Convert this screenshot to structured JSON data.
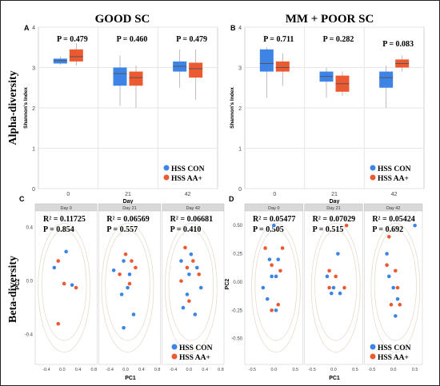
{
  "colors": {
    "con": "#3d84e6",
    "aa": "#ec5a32",
    "grid": "#e6e6e6",
    "ellipse": "#e6dccb"
  },
  "titles": {
    "left": "GOOD SC",
    "right": "MM + POOR SC"
  },
  "row_labels": {
    "alpha": "Alpha-diversity",
    "beta": "Beta-diversity"
  },
  "legend": {
    "con": "HSS CON",
    "aa": "HSS AA+"
  },
  "chart_data": [
    {
      "id": "A",
      "type": "box",
      "panel_label": "A",
      "ylabel": "Shannon's Index",
      "xlabel": "Day",
      "categories": [
        "0",
        "21",
        "42"
      ],
      "ylim": [
        0,
        4
      ],
      "yticks": [
        "0",
        "1",
        "2",
        "3",
        "4"
      ],
      "pvalues": [
        "P = 0.479",
        "P = 0.460",
        "P = 0.479"
      ],
      "series": [
        {
          "name": "HSS CON",
          "boxes": [
            {
              "q1": 3.1,
              "median": 3.17,
              "q3": 3.22,
              "wlo": 3.07,
              "whi": 3.27
            },
            {
              "q1": 2.55,
              "median": 2.85,
              "q3": 3.0,
              "wlo": 2.05,
              "whi": 3.3
            },
            {
              "q1": 2.9,
              "median": 3.03,
              "q3": 3.15,
              "wlo": 2.5,
              "whi": 3.45
            }
          ]
        },
        {
          "name": "HSS AA+",
          "boxes": [
            {
              "q1": 3.15,
              "median": 3.27,
              "q3": 3.45,
              "wlo": 3.05,
              "whi": 3.6
            },
            {
              "q1": 2.55,
              "median": 2.75,
              "q3": 2.9,
              "wlo": 2.0,
              "whi": 3.05
            },
            {
              "q1": 2.75,
              "median": 2.97,
              "q3": 3.12,
              "wlo": 2.2,
              "whi": 3.45
            }
          ]
        }
      ]
    },
    {
      "id": "B",
      "type": "box",
      "panel_label": "B",
      "ylabel": "Shannon's Index",
      "xlabel": "Day",
      "categories": [
        "0",
        "21",
        "42"
      ],
      "ylim": [
        0,
        4
      ],
      "yticks": [
        "0",
        "1",
        "2",
        "3",
        "4"
      ],
      "pvalues": [
        "P = 0.711",
        "P = 0.282",
        "P = 0.083"
      ],
      "series": [
        {
          "name": "HSS CON",
          "boxes": [
            {
              "q1": 2.9,
              "median": 3.1,
              "q3": 3.45,
              "wlo": 2.25,
              "whi": 3.5
            },
            {
              "q1": 2.65,
              "median": 2.78,
              "q3": 2.9,
              "wlo": 2.25,
              "whi": 3.0
            },
            {
              "q1": 2.5,
              "median": 2.75,
              "q3": 2.9,
              "wlo": 2.0,
              "whi": 3.05
            }
          ]
        },
        {
          "name": "HSS AA+",
          "boxes": [
            {
              "q1": 2.9,
              "median": 3.0,
              "q3": 3.15,
              "wlo": 2.55,
              "whi": 3.35
            },
            {
              "q1": 2.4,
              "median": 2.6,
              "q3": 2.8,
              "wlo": 2.3,
              "whi": 2.9
            },
            {
              "q1": 3.0,
              "median": 3.1,
              "q3": 3.2,
              "wlo": 2.9,
              "whi": 3.3
            }
          ]
        }
      ]
    },
    {
      "id": "C",
      "type": "scatter",
      "panel_label": "C",
      "xlabel": "PC1",
      "ylabel": "PC2",
      "xlim": [
        -0.6,
        0.8
      ],
      "ylim": [
        -0.6,
        0.5
      ],
      "xticks": [
        "-0.4",
        "0.0",
        "0.4",
        "0.8"
      ],
      "yticks": [
        "0.4",
        "0.0",
        "-0.4"
      ],
      "facets": [
        {
          "header": "Day 0",
          "r2": "R² = 0.11725",
          "p": "P = 0.854",
          "con": [
            [
              -0.2,
              0.1
            ],
            [
              0.1,
              0.22
            ],
            [
              0.25,
              -0.03
            ]
          ],
          "aa": [
            [
              -0.1,
              0.15
            ],
            [
              0.05,
              -0.02
            ],
            [
              0.35,
              -0.05
            ],
            [
              -0.1,
              -0.32
            ]
          ]
        },
        {
          "header": "Day 21",
          "r2": "R² = 0.06569",
          "p": "P = 0.557",
          "con": [
            [
              -0.3,
              0.08
            ],
            [
              -0.05,
              0.15
            ],
            [
              0.1,
              0.05
            ],
            [
              0.05,
              -0.05
            ],
            [
              -0.1,
              -0.1
            ],
            [
              0.2,
              -0.25
            ],
            [
              -0.05,
              -0.35
            ]
          ],
          "aa": [
            [
              -0.15,
              0.05
            ],
            [
              0.0,
              0.2
            ],
            [
              0.15,
              0.15
            ],
            [
              0.1,
              -0.02
            ],
            [
              0.25,
              0.1
            ]
          ]
        },
        {
          "header": "Day 42",
          "r2": "R² = 0.06681",
          "p": "P = 0.410",
          "con": [
            [
              -0.2,
              0.15
            ],
            [
              0.05,
              0.2
            ],
            [
              0.2,
              0.1
            ],
            [
              -0.05,
              -0.1
            ],
            [
              0.0,
              0.05
            ],
            [
              0.3,
              -0.05
            ],
            [
              -0.15,
              -0.2
            ],
            [
              0.15,
              -0.25
            ]
          ],
          "aa": [
            [
              -0.1,
              0.25
            ],
            [
              0.1,
              0.15
            ],
            [
              -0.2,
              0.0
            ],
            [
              0.0,
              -0.15
            ],
            [
              0.25,
              0.05
            ],
            [
              -0.05,
              0.1
            ]
          ]
        }
      ]
    },
    {
      "id": "D",
      "type": "scatter",
      "panel_label": "D",
      "xlabel": "PC1",
      "ylabel": "PC2",
      "xlim": [
        -0.6,
        0.6
      ],
      "ylim": [
        -0.7,
        0.6
      ],
      "xticks": [
        "-0.5",
        "0.0",
        "0.5"
      ],
      "yticks": [
        "0.50",
        "0.25",
        "0.00",
        "-0.25",
        "-0.50"
      ],
      "facets": [
        {
          "header": "Day 0",
          "r2": "R² = 0.05477",
          "p": "P = 0.505",
          "con": [
            [
              0.0,
              0.5
            ],
            [
              -0.1,
              0.2
            ],
            [
              0.1,
              0.2
            ],
            [
              0.05,
              0.05
            ],
            [
              -0.05,
              0.05
            ],
            [
              -0.25,
              -0.05
            ],
            [
              -0.15,
              -0.15
            ],
            [
              0.05,
              -0.25
            ]
          ],
          "aa": [
            [
              -0.2,
              0.3
            ],
            [
              0.2,
              0.3
            ],
            [
              -0.05,
              0.15
            ],
            [
              0.15,
              0.1
            ],
            [
              0.1,
              -0.2
            ],
            [
              -0.05,
              -0.25
            ]
          ]
        },
        {
          "header": "Day 21",
          "r2": "R² = 0.07029",
          "p": "P = 0.515",
          "con": [
            [
              0.1,
              0.25
            ],
            [
              -0.15,
              0.05
            ],
            [
              0.0,
              -0.05
            ],
            [
              0.15,
              -0.1
            ],
            [
              -0.05,
              -0.1
            ]
          ],
          "aa": [
            [
              0.3,
              0.5
            ],
            [
              -0.1,
              0.1
            ],
            [
              0.05,
              0.05
            ],
            [
              0.25,
              -0.05
            ],
            [
              -0.1,
              -0.05
            ]
          ]
        },
        {
          "header": "Day 42",
          "r2": "R² = 0.05424",
          "p": "P = 0.692",
          "con": [
            [
              0.5,
              0.5
            ],
            [
              -0.15,
              0.25
            ],
            [
              -0.1,
              0.05
            ],
            [
              0.0,
              -0.05
            ],
            [
              0.1,
              -0.15
            ],
            [
              0.05,
              -0.3
            ]
          ],
          "aa": [
            [
              -0.1,
              0.4
            ],
            [
              -0.15,
              0.15
            ],
            [
              0.05,
              0.1
            ],
            [
              0.1,
              -0.05
            ],
            [
              -0.05,
              -0.2
            ],
            [
              0.15,
              -0.2
            ]
          ]
        }
      ]
    }
  ]
}
